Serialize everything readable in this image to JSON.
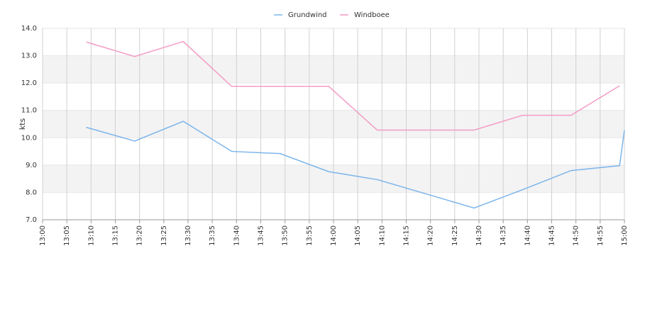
{
  "chart_data": {
    "type": "line",
    "y_label": "kts",
    "x": [
      "13:09",
      "13:19",
      "13:29",
      "13:39",
      "13:49",
      "13:59",
      "14:09",
      "14:29",
      "14:39",
      "14:49",
      "14:59",
      "15:00"
    ],
    "series": [
      {
        "name": "Grundwind",
        "color": "#7cb5ec",
        "values": [
          10.38,
          9.88,
          10.6,
          9.5,
          9.42,
          8.76,
          8.47,
          7.43,
          8.1,
          8.8,
          8.98,
          10.27
        ]
      },
      {
        "name": "Windboee",
        "color": "#f39cc6",
        "values": [
          13.5,
          12.97,
          13.52,
          11.88,
          11.88,
          11.88,
          10.28,
          10.28,
          10.82,
          10.82,
          11.9,
          null
        ]
      }
    ],
    "xlim": [
      "13:00",
      "15:00"
    ],
    "xticks": [
      "13:00",
      "13:05",
      "13:10",
      "13:15",
      "13:20",
      "13:25",
      "13:30",
      "13:35",
      "13:40",
      "13:45",
      "13:50",
      "13:55",
      "14:00",
      "14:05",
      "14:10",
      "14:15",
      "14:20",
      "14:25",
      "14:30",
      "14:35",
      "14:40",
      "14:45",
      "14:50",
      "14:55",
      "15:00"
    ],
    "ylim": [
      7,
      14
    ],
    "yticks": [
      {
        "value": 7,
        "label": "7.0"
      },
      {
        "value": 8,
        "label": "8.0"
      },
      {
        "value": 9,
        "label": "9.0"
      },
      {
        "value": 10,
        "label": "10.0"
      },
      {
        "value": 11,
        "label": "11.0"
      },
      {
        "value": 12,
        "label": "12.0"
      },
      {
        "value": 13,
        "label": "13.0"
      },
      {
        "value": 14,
        "label": "14.0"
      }
    ],
    "grid": true,
    "legend": "top"
  }
}
